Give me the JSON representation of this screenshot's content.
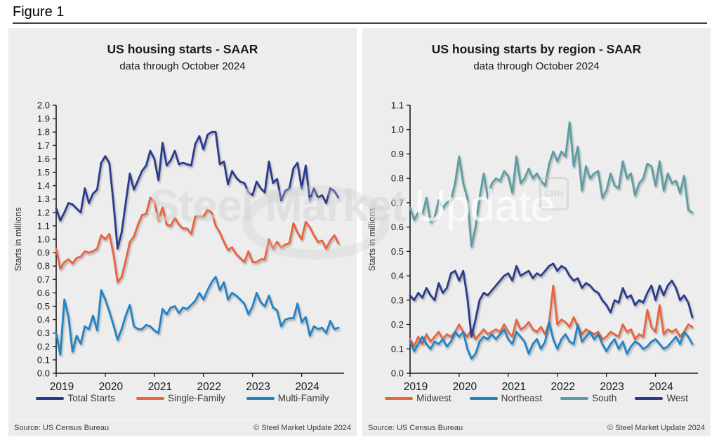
{
  "figure_label": "Figure 1",
  "watermark": {
    "bold": "Steel Market",
    "light": "Update",
    "badge": "CRU"
  },
  "colors": {
    "navy": "#2b3a8c",
    "orange": "#e8643c",
    "blue": "#2183c4",
    "teal": "#5b9da3",
    "panel_bg": "#ededed",
    "axis": "#1a1a1a"
  },
  "panels": [
    {
      "source": "Source: US Census Bureau",
      "copyright": "© Steel Market Update 2024"
    },
    {
      "source": "Source: US Census Bureau",
      "copyright": "© Steel Market Update 2024"
    }
  ],
  "chart_data": [
    {
      "type": "line",
      "title": "US housing starts - SAAR",
      "subtitle": "data through October 2024",
      "ylabel": "Starts in millions",
      "ylim": [
        0.0,
        2.0
      ],
      "ytick_step": 0.1,
      "grid": false,
      "legend_position": "bottom",
      "x_start": "2019-01",
      "x_end": "2024-10",
      "x_tick_labels": [
        "2019",
        "2020",
        "2021",
        "2022",
        "2023",
        "2024"
      ],
      "legend": [
        "Total Starts",
        "Single-Family",
        "Multi-Family"
      ],
      "series": [
        {
          "name": "Multi-Family",
          "color": "#2183c4",
          "values": [
            0.3,
            0.14,
            0.55,
            0.42,
            0.16,
            0.28,
            0.22,
            0.35,
            0.33,
            0.43,
            0.32,
            0.62,
            0.55,
            0.46,
            0.36,
            0.25,
            0.33,
            0.43,
            0.51,
            0.35,
            0.33,
            0.33,
            0.36,
            0.35,
            0.32,
            0.3,
            0.48,
            0.44,
            0.49,
            0.5,
            0.45,
            0.49,
            0.48,
            0.51,
            0.54,
            0.6,
            0.55,
            0.62,
            0.68,
            0.72,
            0.62,
            0.68,
            0.55,
            0.6,
            0.58,
            0.55,
            0.52,
            0.44,
            0.5,
            0.6,
            0.53,
            0.5,
            0.58,
            0.49,
            0.47,
            0.35,
            0.4,
            0.41,
            0.41,
            0.52,
            0.38,
            0.42,
            0.28,
            0.35,
            0.33,
            0.34,
            0.3,
            0.39,
            0.33,
            0.34
          ]
        },
        {
          "name": "Single-Family",
          "color": "#e8643c",
          "values": [
            0.93,
            0.78,
            0.83,
            0.85,
            0.82,
            0.86,
            0.87,
            0.91,
            0.9,
            0.91,
            0.93,
            1.03,
            1.0,
            1.04,
            0.89,
            0.68,
            0.72,
            0.84,
            0.98,
            1.02,
            1.11,
            1.18,
            1.19,
            1.31,
            1.28,
            1.14,
            1.24,
            1.11,
            1.1,
            1.16,
            1.11,
            1.08,
            1.08,
            1.04,
            1.17,
            1.17,
            1.17,
            1.22,
            1.2,
            1.1,
            1.05,
            0.98,
            0.92,
            0.94,
            0.89,
            0.86,
            0.83,
            0.91,
            0.83,
            0.83,
            0.85,
            0.85,
            1.0,
            0.93,
            0.98,
            0.94,
            0.96,
            0.97,
            1.12,
            1.05,
            1.0,
            1.13,
            1.09,
            1.03,
            0.98,
            0.99,
            0.93,
            0.99,
            1.03,
            0.97
          ]
        },
        {
          "name": "Total Starts",
          "color": "#2b3a8c",
          "values": [
            1.23,
            1.14,
            1.2,
            1.27,
            1.26,
            1.23,
            1.2,
            1.38,
            1.27,
            1.34,
            1.37,
            1.57,
            1.62,
            1.57,
            1.27,
            0.93,
            1.05,
            1.27,
            1.49,
            1.37,
            1.44,
            1.51,
            1.55,
            1.66,
            1.6,
            1.44,
            1.72,
            1.55,
            1.59,
            1.66,
            1.56,
            1.57,
            1.56,
            1.55,
            1.71,
            1.77,
            1.67,
            1.78,
            1.8,
            1.8,
            1.56,
            1.58,
            1.41,
            1.51,
            1.46,
            1.43,
            1.42,
            1.35,
            1.33,
            1.43,
            1.38,
            1.35,
            1.58,
            1.42,
            1.45,
            1.29,
            1.36,
            1.38,
            1.53,
            1.57,
            1.38,
            1.55,
            1.29,
            1.38,
            1.31,
            1.33,
            1.27,
            1.38,
            1.36,
            1.31
          ]
        }
      ]
    },
    {
      "type": "line",
      "title": "US housing starts by region - SAAR",
      "subtitle": "data through October 2024",
      "ylabel": "Starts in millions",
      "ylim": [
        0.0,
        1.1
      ],
      "ytick_step": 0.1,
      "grid": false,
      "legend_position": "bottom",
      "x_start": "2019-01",
      "x_end": "2024-10",
      "x_tick_labels": [
        "2019",
        "2020",
        "2021",
        "2022",
        "2023",
        "2024"
      ],
      "legend": [
        "Midwest",
        "Northeast",
        "South",
        "West"
      ],
      "series": [
        {
          "name": "South",
          "color": "#5b9da3",
          "values": [
            0.68,
            0.63,
            0.66,
            0.65,
            0.72,
            0.62,
            0.64,
            0.71,
            0.68,
            0.7,
            0.71,
            0.78,
            0.89,
            0.78,
            0.72,
            0.52,
            0.6,
            0.72,
            0.82,
            0.72,
            0.78,
            0.8,
            0.79,
            0.83,
            0.81,
            0.74,
            0.89,
            0.78,
            0.8,
            0.84,
            0.8,
            0.82,
            0.79,
            0.77,
            0.86,
            0.91,
            0.87,
            0.91,
            0.89,
            1.03,
            0.85,
            0.93,
            0.75,
            0.85,
            0.8,
            0.82,
            0.83,
            0.72,
            0.75,
            0.82,
            0.77,
            0.76,
            0.87,
            0.8,
            0.82,
            0.73,
            0.78,
            0.8,
            0.86,
            0.85,
            0.77,
            0.87,
            0.75,
            0.82,
            0.78,
            0.79,
            0.74,
            0.81,
            0.67,
            0.66
          ]
        },
        {
          "name": "Midwest",
          "color": "#e8643c",
          "values": [
            0.14,
            0.11,
            0.15,
            0.12,
            0.16,
            0.13,
            0.15,
            0.17,
            0.14,
            0.16,
            0.15,
            0.17,
            0.2,
            0.17,
            0.15,
            0.18,
            0.14,
            0.16,
            0.18,
            0.16,
            0.17,
            0.18,
            0.17,
            0.2,
            0.17,
            0.15,
            0.22,
            0.18,
            0.19,
            0.21,
            0.18,
            0.17,
            0.19,
            0.16,
            0.21,
            0.36,
            0.2,
            0.22,
            0.21,
            0.19,
            0.23,
            0.19,
            0.16,
            0.18,
            0.17,
            0.16,
            0.17,
            0.14,
            0.15,
            0.17,
            0.16,
            0.15,
            0.2,
            0.17,
            0.18,
            0.14,
            0.16,
            0.15,
            0.26,
            0.19,
            0.17,
            0.28,
            0.16,
            0.18,
            0.17,
            0.18,
            0.15,
            0.17,
            0.2,
            0.19
          ]
        },
        {
          "name": "Northeast",
          "color": "#2183c4",
          "values": [
            0.13,
            0.09,
            0.12,
            0.15,
            0.12,
            0.1,
            0.13,
            0.12,
            0.14,
            0.11,
            0.13,
            0.17,
            0.15,
            0.17,
            0.1,
            0.06,
            0.08,
            0.13,
            0.15,
            0.14,
            0.16,
            0.14,
            0.16,
            0.18,
            0.14,
            0.12,
            0.17,
            0.15,
            0.13,
            0.08,
            0.12,
            0.14,
            0.1,
            0.13,
            0.21,
            0.14,
            0.1,
            0.14,
            0.16,
            0.13,
            0.12,
            0.2,
            0.13,
            0.15,
            0.17,
            0.14,
            0.16,
            0.12,
            0.09,
            0.12,
            0.14,
            0.1,
            0.13,
            0.08,
            0.11,
            0.13,
            0.12,
            0.1,
            0.11,
            0.13,
            0.14,
            0.12,
            0.1,
            0.11,
            0.13,
            0.15,
            0.12,
            0.17,
            0.15,
            0.12
          ]
        },
        {
          "name": "West",
          "color": "#2b3a8c",
          "values": [
            0.32,
            0.3,
            0.33,
            0.31,
            0.35,
            0.32,
            0.3,
            0.37,
            0.33,
            0.35,
            0.41,
            0.42,
            0.38,
            0.42,
            0.31,
            0.15,
            0.22,
            0.3,
            0.33,
            0.32,
            0.34,
            0.36,
            0.38,
            0.4,
            0.41,
            0.38,
            0.44,
            0.4,
            0.41,
            0.42,
            0.39,
            0.41,
            0.4,
            0.42,
            0.44,
            0.45,
            0.42,
            0.44,
            0.43,
            0.4,
            0.38,
            0.39,
            0.35,
            0.37,
            0.36,
            0.34,
            0.33,
            0.3,
            0.28,
            0.25,
            0.3,
            0.29,
            0.35,
            0.31,
            0.32,
            0.28,
            0.3,
            0.29,
            0.33,
            0.36,
            0.3,
            0.36,
            0.32,
            0.36,
            0.38,
            0.35,
            0.3,
            0.32,
            0.29,
            0.23
          ]
        }
      ]
    }
  ]
}
